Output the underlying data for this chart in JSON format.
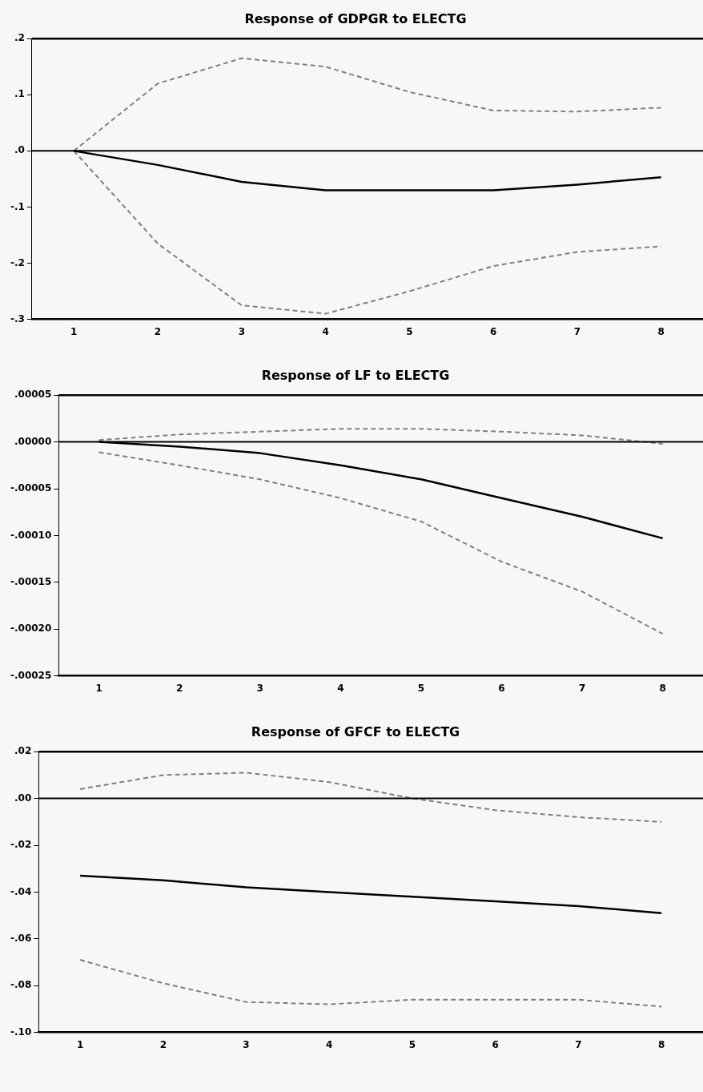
{
  "chart_data": [
    {
      "type": "line",
      "title": "Response of GDPGR to ELECTG",
      "categories": [
        "1",
        "2",
        "3",
        "4",
        "5",
        "6",
        "7",
        "8"
      ],
      "series": [
        {
          "color": "#000000",
          "line_style": "solid",
          "values": [
            0,
            -0.025,
            -0.055,
            -0.07,
            -0.07,
            -0.07,
            -0.06,
            -0.047
          ]
        },
        {
          "color": "#808080",
          "line_style": "dashed",
          "values": [
            0,
            0.12,
            0.165,
            0.15,
            0.105,
            0.072,
            0.07,
            0.077
          ]
        },
        {
          "color": "#808080",
          "line_style": "dashed",
          "values": [
            0,
            -0.165,
            -0.275,
            -0.29,
            -0.25,
            -0.205,
            -0.18,
            -0.17
          ]
        }
      ],
      "ylim": [
        -0.3,
        0.2
      ],
      "yticks": [
        {
          "value": -0.3,
          "label": "-.3"
        },
        {
          "value": -0.2,
          "label": "-.2"
        },
        {
          "value": -0.1,
          "label": "-.1"
        },
        {
          "value": 0,
          "label": ".0"
        },
        {
          "value": 0.1,
          "label": ".1"
        },
        {
          "value": 0.2,
          "label": ".2"
        }
      ],
      "ref_lines": [
        {
          "axis": "y",
          "value": 0,
          "color": "#000000"
        }
      ],
      "grid": false,
      "legend": false,
      "marker": "none"
    },
    {
      "type": "line",
      "title": "Response of LF to ELECTG",
      "categories": [
        "1",
        "2",
        "3",
        "4",
        "5",
        "6",
        "7",
        "8"
      ],
      "series": [
        {
          "color": "#000000",
          "line_style": "solid",
          "values": [
            0,
            -5e-06,
            -1.2e-05,
            -2.5e-05,
            -4e-05,
            -6e-05,
            -8e-05,
            -0.000103
          ]
        },
        {
          "color": "#808080",
          "line_style": "dashed",
          "values": [
            2e-06,
            8e-06,
            1.1e-05,
            1.4e-05,
            1.4e-05,
            1.1e-05,
            7e-06,
            -2e-06
          ]
        },
        {
          "color": "#808080",
          "line_style": "dashed",
          "values": [
            -1.1e-05,
            -2.5e-05,
            -4e-05,
            -6e-05,
            -8.5e-05,
            -0.000128,
            -0.00016,
            -0.000205
          ]
        }
      ],
      "ylim": [
        -0.00025,
        5e-05
      ],
      "yticks": [
        {
          "value": -0.00025,
          "label": "-.00025"
        },
        {
          "value": -0.0002,
          "label": "-.00020"
        },
        {
          "value": -0.00015,
          "label": "-.00015"
        },
        {
          "value": -0.0001,
          "label": "-.00010"
        },
        {
          "value": -5e-05,
          "label": "-.00005"
        },
        {
          "value": 0,
          "label": ".00000"
        },
        {
          "value": 5e-05,
          "label": ".00005"
        }
      ],
      "ref_lines": [
        {
          "axis": "y",
          "value": 0,
          "color": "#000000"
        }
      ],
      "grid": false,
      "legend": false,
      "marker": "none"
    },
    {
      "type": "line",
      "title": "Response of GFCF to ELECTG",
      "categories": [
        "1",
        "2",
        "3",
        "4",
        "5",
        "6",
        "7",
        "8"
      ],
      "series": [
        {
          "color": "#000000",
          "line_style": "solid",
          "values": [
            -0.033,
            -0.035,
            -0.038,
            -0.04,
            -0.042,
            -0.044,
            -0.046,
            -0.049
          ]
        },
        {
          "color": "#808080",
          "line_style": "dashed",
          "values": [
            0.004,
            0.01,
            0.011,
            0.007,
            0,
            -0.005,
            -0.008,
            -0.01
          ]
        },
        {
          "color": "#808080",
          "line_style": "dashed",
          "values": [
            -0.069,
            -0.079,
            -0.087,
            -0.088,
            -0.086,
            -0.086,
            -0.086,
            -0.089
          ]
        }
      ],
      "ylim": [
        -0.1,
        0.02
      ],
      "yticks": [
        {
          "value": -0.1,
          "label": "-.10"
        },
        {
          "value": -0.08,
          "label": "-.08"
        },
        {
          "value": -0.06,
          "label": "-.06"
        },
        {
          "value": -0.04,
          "label": "-.04"
        },
        {
          "value": -0.02,
          "label": "-.02"
        },
        {
          "value": 0,
          "label": ".00"
        },
        {
          "value": 0.02,
          "label": ".02"
        }
      ],
      "ref_lines": [
        {
          "axis": "y",
          "value": 0,
          "color": "#000000"
        }
      ],
      "grid": false,
      "legend": false,
      "marker": "none"
    }
  ]
}
